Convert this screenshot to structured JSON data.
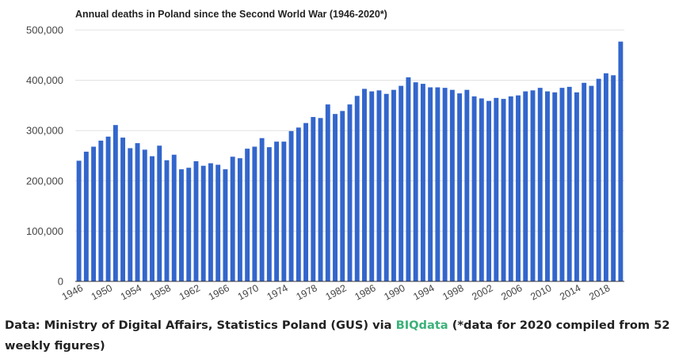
{
  "chart_data": {
    "type": "bar",
    "title": "Annual deaths in Poland since the Second World War (1946-2020*)",
    "xlabel": "",
    "ylabel": "",
    "ylim": [
      0,
      500000
    ],
    "y_ticks": [
      0,
      100000,
      200000,
      300000,
      400000,
      500000
    ],
    "y_tick_labels": [
      "0",
      "100,000",
      "200,000",
      "300,000",
      "400,000",
      "500,000"
    ],
    "x_tick_labels": [
      "1946",
      "1950",
      "1954",
      "1958",
      "1962",
      "1966",
      "1970",
      "1974",
      "1978",
      "1982",
      "1986",
      "1990",
      "1994",
      "1998",
      "2002",
      "2006",
      "2010",
      "2014",
      "2018"
    ],
    "grid": true,
    "legend": "none",
    "bar_color": "#3366cc",
    "categories": [
      "1946",
      "1947",
      "1948",
      "1949",
      "1950",
      "1951",
      "1952",
      "1953",
      "1954",
      "1955",
      "1956",
      "1957",
      "1958",
      "1959",
      "1960",
      "1961",
      "1962",
      "1963",
      "1964",
      "1965",
      "1966",
      "1967",
      "1968",
      "1969",
      "1970",
      "1971",
      "1972",
      "1973",
      "1974",
      "1975",
      "1976",
      "1977",
      "1978",
      "1979",
      "1980",
      "1981",
      "1982",
      "1983",
      "1984",
      "1985",
      "1986",
      "1987",
      "1988",
      "1989",
      "1990",
      "1991",
      "1992",
      "1993",
      "1994",
      "1995",
      "1996",
      "1997",
      "1998",
      "1999",
      "2000",
      "2001",
      "2002",
      "2003",
      "2004",
      "2005",
      "2006",
      "2007",
      "2008",
      "2009",
      "2010",
      "2011",
      "2012",
      "2013",
      "2014",
      "2015",
      "2016",
      "2017",
      "2018",
      "2019",
      "2020"
    ],
    "values": [
      240000,
      258000,
      268000,
      280000,
      288000,
      311000,
      286000,
      265000,
      275000,
      262000,
      249000,
      270000,
      241000,
      252000,
      223000,
      226000,
      239000,
      230000,
      235000,
      232000,
      223000,
      248000,
      245000,
      264000,
      268000,
      285000,
      267000,
      278000,
      278000,
      299000,
      306000,
      315000,
      327000,
      325000,
      352000,
      333000,
      339000,
      352000,
      369000,
      383000,
      378000,
      380000,
      373000,
      381000,
      389000,
      406000,
      396000,
      393000,
      386000,
      386000,
      385000,
      381000,
      374000,
      381000,
      368000,
      364000,
      359000,
      365000,
      363000,
      368000,
      370000,
      378000,
      380000,
      385000,
      378000,
      376000,
      385000,
      387000,
      376000,
      395000,
      389000,
      403000,
      414000,
      410000,
      477000
    ]
  },
  "caption": {
    "prefix": "Data: Ministry of Digital Affairs, Statistics Poland (GUS) via ",
    "link_text": "BIQdata",
    "suffix": " (*data for 2020 compiled from 52 weekly figures)",
    "link_color": "#3cb17a"
  }
}
